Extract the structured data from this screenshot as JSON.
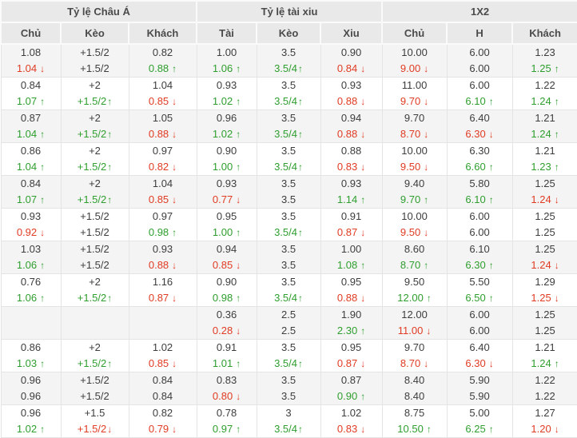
{
  "colors": {
    "up_green": "#2e9e2e",
    "down_red": "#e03b23",
    "header_bg": "#e9e9e9",
    "shaded_row_bg": "#f4f4f4",
    "text": "#3d3d3d",
    "grid_line": "#e4e4e4"
  },
  "icons": {
    "up_arrow": "↑",
    "down_arrow": "↓"
  },
  "table": {
    "groups": [
      {
        "label": "Tỷ lệ Châu Á",
        "columns": [
          "Chủ",
          "Kèo",
          "Khách"
        ]
      },
      {
        "label": "Tỷ lệ tài xiu",
        "columns": [
          "Tài",
          "Kèo",
          "Xiu"
        ]
      },
      {
        "label": "1X2",
        "columns": [
          "Chủ",
          "H",
          "Khách"
        ]
      }
    ],
    "rows": [
      {
        "shaded": true,
        "cells": [
          {
            "top": "1.08",
            "bottom": "1.04",
            "trend": "down"
          },
          {
            "top": "+1.5/2",
            "bottom": "+1.5/2",
            "trend": null
          },
          {
            "top": "0.82",
            "bottom": "0.88",
            "trend": "up"
          },
          {
            "top": "1.00",
            "bottom": "1.06",
            "trend": "up"
          },
          {
            "top": "3.5",
            "bottom": "3.5/4",
            "trend": "up"
          },
          {
            "top": "0.90",
            "bottom": "0.84",
            "trend": "down"
          },
          {
            "top": "10.00",
            "bottom": "9.00",
            "trend": "down"
          },
          {
            "top": "6.00",
            "bottom": "6.00",
            "trend": null
          },
          {
            "top": "1.23",
            "bottom": "1.25",
            "trend": "up"
          }
        ]
      },
      {
        "shaded": false,
        "cells": [
          {
            "top": "0.84",
            "bottom": "1.07",
            "trend": "up"
          },
          {
            "top": "+2",
            "bottom": "+1.5/2",
            "trend": "up"
          },
          {
            "top": "1.04",
            "bottom": "0.85",
            "trend": "down"
          },
          {
            "top": "0.93",
            "bottom": "1.02",
            "trend": "up"
          },
          {
            "top": "3.5",
            "bottom": "3.5/4",
            "trend": "up"
          },
          {
            "top": "0.93",
            "bottom": "0.88",
            "trend": "down"
          },
          {
            "top": "11.00",
            "bottom": "9.70",
            "trend": "down"
          },
          {
            "top": "6.00",
            "bottom": "6.10",
            "trend": "up"
          },
          {
            "top": "1.22",
            "bottom": "1.24",
            "trend": "up"
          }
        ]
      },
      {
        "shaded": true,
        "cells": [
          {
            "top": "0.87",
            "bottom": "1.04",
            "trend": "up"
          },
          {
            "top": "+2",
            "bottom": "+1.5/2",
            "trend": "up"
          },
          {
            "top": "1.05",
            "bottom": "0.88",
            "trend": "down"
          },
          {
            "top": "0.96",
            "bottom": "1.02",
            "trend": "up"
          },
          {
            "top": "3.5",
            "bottom": "3.5/4",
            "trend": "up"
          },
          {
            "top": "0.94",
            "bottom": "0.88",
            "trend": "down"
          },
          {
            "top": "9.70",
            "bottom": "8.70",
            "trend": "down"
          },
          {
            "top": "6.40",
            "bottom": "6.30",
            "trend": "down"
          },
          {
            "top": "1.21",
            "bottom": "1.24",
            "trend": "up"
          }
        ]
      },
      {
        "shaded": false,
        "cells": [
          {
            "top": "0.86",
            "bottom": "1.04",
            "trend": "up"
          },
          {
            "top": "+2",
            "bottom": "+1.5/2",
            "trend": "up"
          },
          {
            "top": "0.97",
            "bottom": "0.82",
            "trend": "down"
          },
          {
            "top": "0.90",
            "bottom": "1.00",
            "trend": "up"
          },
          {
            "top": "3.5",
            "bottom": "3.5/4",
            "trend": "up"
          },
          {
            "top": "0.88",
            "bottom": "0.83",
            "trend": "down"
          },
          {
            "top": "10.00",
            "bottom": "9.50",
            "trend": "down"
          },
          {
            "top": "6.30",
            "bottom": "6.60",
            "trend": "up"
          },
          {
            "top": "1.21",
            "bottom": "1.23",
            "trend": "up"
          }
        ]
      },
      {
        "shaded": true,
        "cells": [
          {
            "top": "0.84",
            "bottom": "1.07",
            "trend": "up"
          },
          {
            "top": "+2",
            "bottom": "+1.5/2",
            "trend": "up"
          },
          {
            "top": "1.04",
            "bottom": "0.85",
            "trend": "down"
          },
          {
            "top": "0.93",
            "bottom": "0.77",
            "trend": "down"
          },
          {
            "top": "3.5",
            "bottom": "3.5",
            "trend": null
          },
          {
            "top": "0.93",
            "bottom": "1.14",
            "trend": "up"
          },
          {
            "top": "9.40",
            "bottom": "9.70",
            "trend": "up"
          },
          {
            "top": "5.80",
            "bottom": "6.10",
            "trend": "up"
          },
          {
            "top": "1.25",
            "bottom": "1.24",
            "trend": "down"
          }
        ]
      },
      {
        "shaded": false,
        "cells": [
          {
            "top": "0.93",
            "bottom": "0.92",
            "trend": "down"
          },
          {
            "top": "+1.5/2",
            "bottom": "+1.5/2",
            "trend": null
          },
          {
            "top": "0.97",
            "bottom": "0.98",
            "trend": "up"
          },
          {
            "top": "0.95",
            "bottom": "1.00",
            "trend": "up"
          },
          {
            "top": "3.5",
            "bottom": "3.5/4",
            "trend": "up"
          },
          {
            "top": "0.91",
            "bottom": "0.87",
            "trend": "down"
          },
          {
            "top": "10.00",
            "bottom": "9.50",
            "trend": "down"
          },
          {
            "top": "6.00",
            "bottom": "6.00",
            "trend": null
          },
          {
            "top": "1.25",
            "bottom": "1.25",
            "trend": null
          }
        ]
      },
      {
        "shaded": true,
        "cells": [
          {
            "top": "1.03",
            "bottom": "1.06",
            "trend": "up"
          },
          {
            "top": "+1.5/2",
            "bottom": "+1.5/2",
            "trend": null
          },
          {
            "top": "0.93",
            "bottom": "0.88",
            "trend": "down"
          },
          {
            "top": "0.94",
            "bottom": "0.85",
            "trend": "down"
          },
          {
            "top": "3.5",
            "bottom": "3.5",
            "trend": null
          },
          {
            "top": "1.00",
            "bottom": "1.08",
            "trend": "up"
          },
          {
            "top": "8.60",
            "bottom": "8.70",
            "trend": "up"
          },
          {
            "top": "6.10",
            "bottom": "6.30",
            "trend": "up"
          },
          {
            "top": "1.25",
            "bottom": "1.24",
            "trend": "down"
          }
        ]
      },
      {
        "shaded": false,
        "cells": [
          {
            "top": "0.76",
            "bottom": "1.06",
            "trend": "up"
          },
          {
            "top": "+2",
            "bottom": "+1.5/2",
            "trend": "up"
          },
          {
            "top": "1.16",
            "bottom": "0.87",
            "trend": "down"
          },
          {
            "top": "0.90",
            "bottom": "0.98",
            "trend": "up"
          },
          {
            "top": "3.5",
            "bottom": "3.5/4",
            "trend": "up"
          },
          {
            "top": "0.95",
            "bottom": "0.88",
            "trend": "down"
          },
          {
            "top": "9.50",
            "bottom": "12.00",
            "trend": "up"
          },
          {
            "top": "5.50",
            "bottom": "6.50",
            "trend": "up"
          },
          {
            "top": "1.29",
            "bottom": "1.25",
            "trend": "down"
          }
        ]
      },
      {
        "shaded": true,
        "cells": [
          {
            "top": "",
            "bottom": "",
            "trend": null
          },
          {
            "top": "",
            "bottom": "",
            "trend": null
          },
          {
            "top": "",
            "bottom": "",
            "trend": null
          },
          {
            "top": "0.36",
            "bottom": "0.28",
            "trend": "down"
          },
          {
            "top": "2.5",
            "bottom": "2.5",
            "trend": null
          },
          {
            "top": "1.90",
            "bottom": "2.30",
            "trend": "up"
          },
          {
            "top": "12.00",
            "bottom": "11.00",
            "trend": "down"
          },
          {
            "top": "6.00",
            "bottom": "6.00",
            "trend": null
          },
          {
            "top": "1.25",
            "bottom": "1.25",
            "trend": null
          }
        ]
      },
      {
        "shaded": false,
        "cells": [
          {
            "top": "0.86",
            "bottom": "1.03",
            "trend": "up"
          },
          {
            "top": "+2",
            "bottom": "+1.5/2",
            "trend": "up"
          },
          {
            "top": "1.02",
            "bottom": "0.85",
            "trend": "down"
          },
          {
            "top": "0.91",
            "bottom": "1.01",
            "trend": "up"
          },
          {
            "top": "3.5",
            "bottom": "3.5/4",
            "trend": "up"
          },
          {
            "top": "0.95",
            "bottom": "0.87",
            "trend": "down"
          },
          {
            "top": "9.70",
            "bottom": "8.70",
            "trend": "down"
          },
          {
            "top": "6.40",
            "bottom": "6.30",
            "trend": "down"
          },
          {
            "top": "1.21",
            "bottom": "1.24",
            "trend": "up"
          }
        ]
      },
      {
        "shaded": true,
        "cells": [
          {
            "top": "0.96",
            "bottom": "0.96",
            "trend": null
          },
          {
            "top": "+1.5/2",
            "bottom": "+1.5/2",
            "trend": null
          },
          {
            "top": "0.84",
            "bottom": "0.84",
            "trend": null
          },
          {
            "top": "0.83",
            "bottom": "0.80",
            "trend": "down"
          },
          {
            "top": "3.5",
            "bottom": "3.5",
            "trend": null
          },
          {
            "top": "0.87",
            "bottom": "0.90",
            "trend": "up"
          },
          {
            "top": "8.40",
            "bottom": "8.40",
            "trend": null
          },
          {
            "top": "5.90",
            "bottom": "5.90",
            "trend": null
          },
          {
            "top": "1.22",
            "bottom": "1.22",
            "trend": null
          }
        ]
      },
      {
        "shaded": false,
        "cells": [
          {
            "top": "0.96",
            "bottom": "1.02",
            "trend": "up"
          },
          {
            "top": "+1.5",
            "bottom": "+1.5/2",
            "trend": "down"
          },
          {
            "top": "0.82",
            "bottom": "0.79",
            "trend": "down"
          },
          {
            "top": "0.78",
            "bottom": "0.97",
            "trend": "up"
          },
          {
            "top": "3",
            "bottom": "3.5/4",
            "trend": "up"
          },
          {
            "top": "1.02",
            "bottom": "0.83",
            "trend": "down"
          },
          {
            "top": "8.75",
            "bottom": "10.50",
            "trend": "up"
          },
          {
            "top": "5.00",
            "bottom": "6.25",
            "trend": "up"
          },
          {
            "top": "1.27",
            "bottom": "1.20",
            "trend": "down"
          }
        ]
      }
    ]
  }
}
